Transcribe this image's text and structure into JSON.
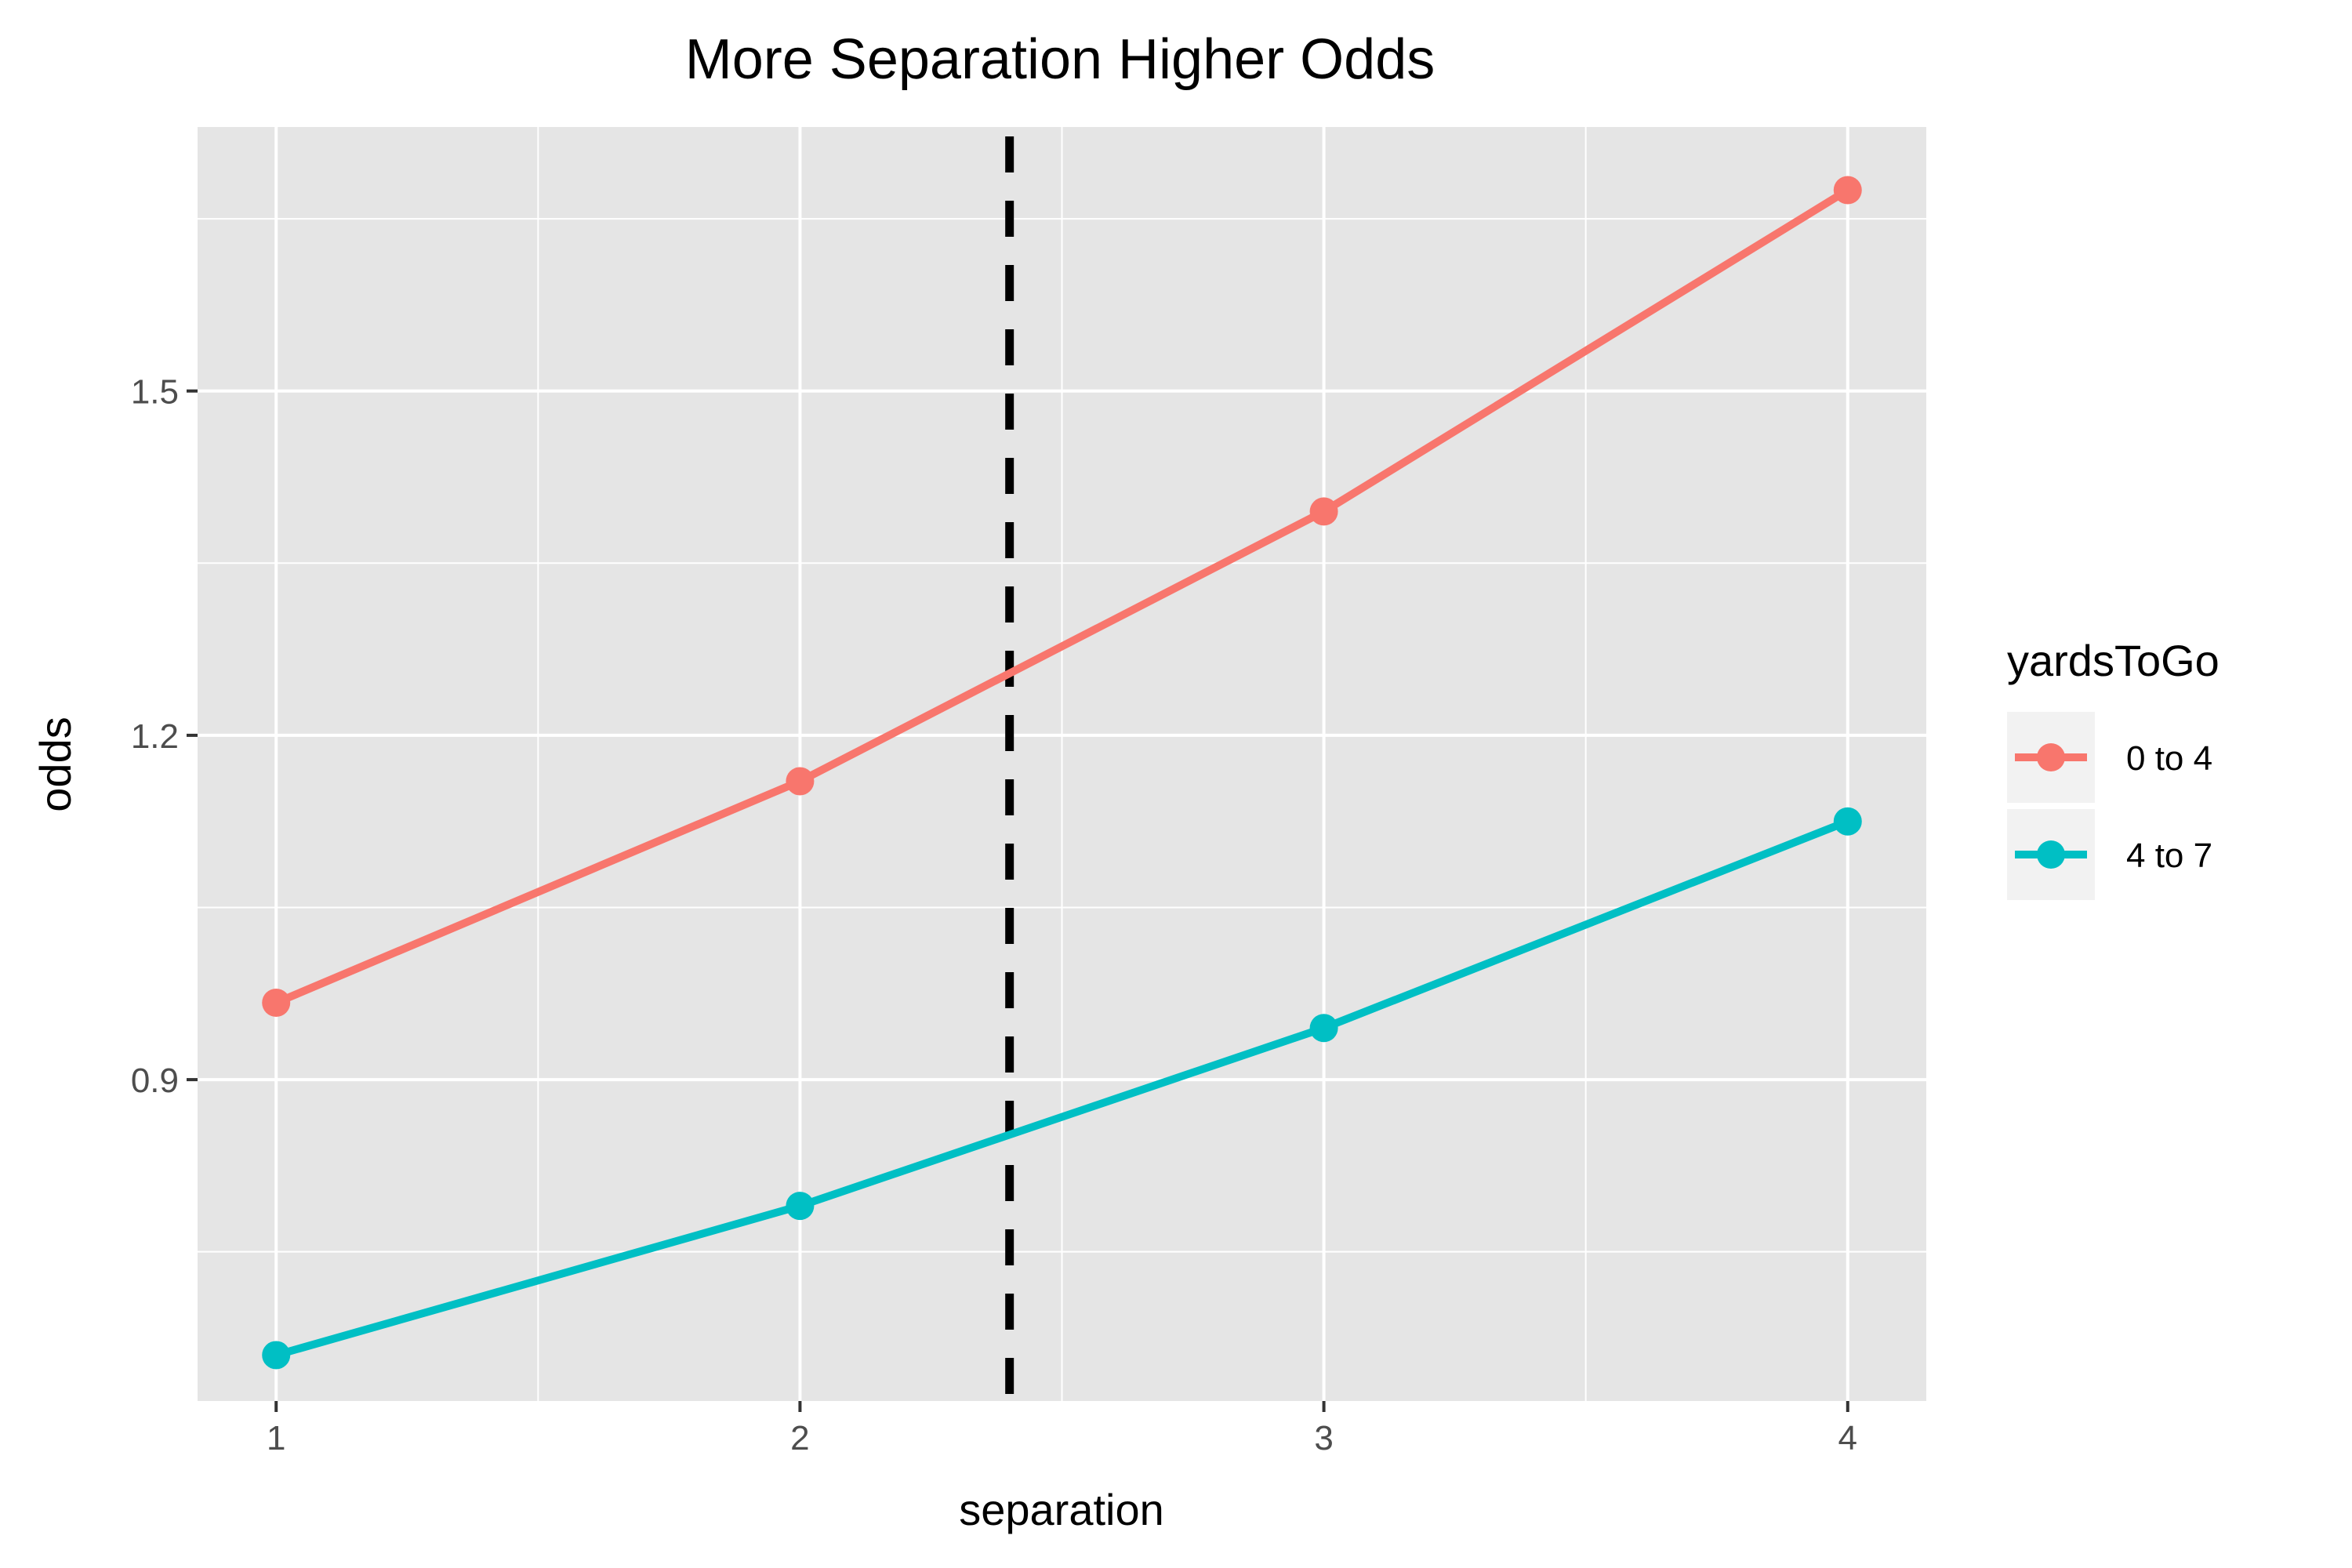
{
  "chart_data": {
    "type": "line",
    "title": "More Separation Higher Odds",
    "xlabel": "separation",
    "ylabel": "odds",
    "xlim": [
      0.85,
      4.15
    ],
    "ylim": [
      0.62,
      1.73
    ],
    "x_ticks": [
      1,
      2,
      3,
      4
    ],
    "x_tick_labels": [
      "1",
      "2",
      "3",
      "4"
    ],
    "y_ticks": [
      0.9,
      1.2,
      1.5
    ],
    "y_tick_labels": [
      "0.9",
      "1.2",
      "1.5"
    ],
    "x_minor_gridlines": [
      1.5,
      2.5,
      3.5
    ],
    "y_minor_gridlines": [
      0.75,
      1.05,
      1.35,
      1.65
    ],
    "grid": true,
    "panel_background": "#e5e5e5",
    "legend": {
      "title": "yardsToGo",
      "position": "right"
    },
    "reference_line": {
      "orientation": "vertical",
      "x": 2.4,
      "style": "dashed",
      "color": "#000000"
    },
    "x": [
      1,
      2,
      3,
      4
    ],
    "series": [
      {
        "name": "0 to 4",
        "color": "#F8766D",
        "values": [
          0.967,
          1.16,
          1.395,
          1.675
        ]
      },
      {
        "name": "4 to 7",
        "color": "#00BFC4",
        "values": [
          0.66,
          0.79,
          0.945,
          1.125
        ]
      }
    ]
  }
}
